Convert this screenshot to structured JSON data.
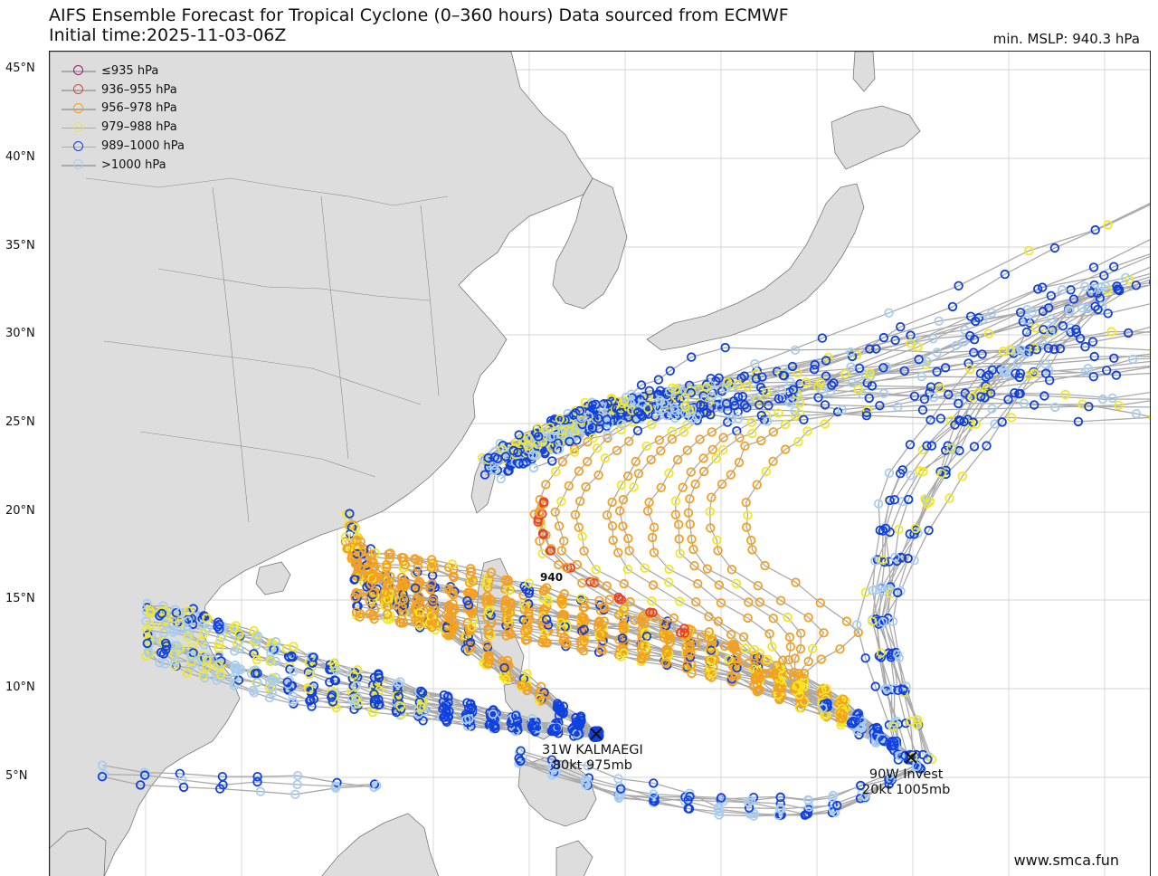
{
  "title": {
    "line1": "AIFS Ensemble Forecast for Tropical Cyclone (0–360 hours) Data sourced from ECMWF",
    "line2": "Initial time:2025-11-03-06Z"
  },
  "min_mslp": "min. MSLP: 940.3 hPa",
  "latitude_labels": [
    "45°N",
    "40°N",
    "35°N",
    "30°N",
    "25°N",
    "20°N",
    "15°N",
    "10°N",
    "5°N"
  ],
  "legend": [
    {
      "label": "≤935 hPa",
      "color": "#9b1b6e"
    },
    {
      "label": "936–955 hPa",
      "color": "#e8402a"
    },
    {
      "label": "956–978 hPa",
      "color": "#f5a01e"
    },
    {
      "label": "979–988 hPa",
      "color": "#f2e81e"
    },
    {
      "label": "989–1000 hPa",
      "color": "#1040e0"
    },
    {
      "label": ">1000 hPa",
      "color": "#a8cdf0"
    }
  ],
  "storms": [
    {
      "line1": "31W KALMAEGI",
      "line2": "80kt 975mb"
    },
    {
      "line1": "90W Invest",
      "line2": "20kt 1005mb"
    }
  ],
  "min_marker_label": "940",
  "watermark": "www.smca.fun",
  "colors": {
    "land": "#dddddd",
    "ocean": "#ffffff",
    "track": "#aaaaaa",
    "grid": "#c8c8c8"
  }
}
